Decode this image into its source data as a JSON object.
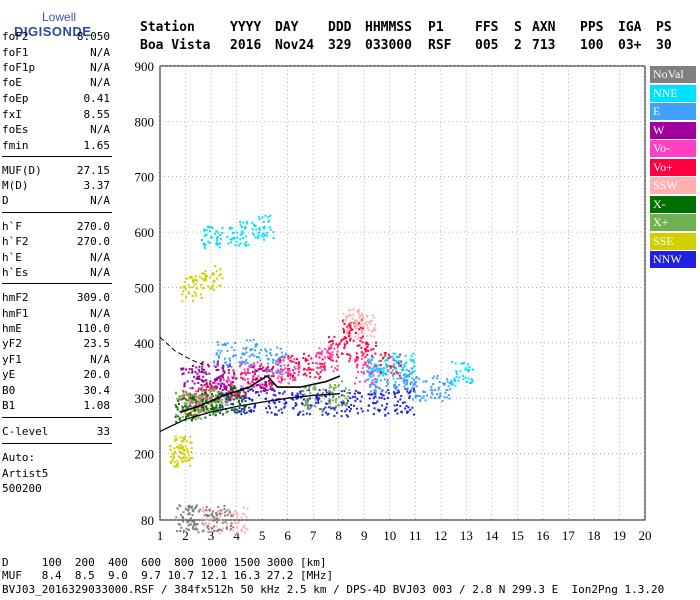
{
  "logo": {
    "brand_top": "Lowell",
    "brand_main": "DIGISONDE"
  },
  "header": {
    "row1": [
      "Station",
      "YYYY",
      "DAY",
      "DDD",
      "HHMMSS",
      "P1",
      "FFS",
      "S",
      "AXN",
      "PPS",
      "IGA",
      "PS"
    ],
    "row2": [
      "Boa Vista",
      "2016",
      "Nov24",
      "329",
      "033000",
      "RSF",
      "005",
      "2",
      "713",
      "100",
      "03+",
      "30"
    ]
  },
  "params": [
    {
      "label": "foF2",
      "value": "8.050"
    },
    {
      "label": "foF1",
      "value": "N/A"
    },
    {
      "label": "foF1p",
      "value": "N/A"
    },
    {
      "label": "foE",
      "value": "N/A"
    },
    {
      "label": "foEp",
      "value": "0.41"
    },
    {
      "label": "fxI",
      "value": "8.55"
    },
    {
      "label": "foEs",
      "value": "N/A"
    },
    {
      "label": "fmin",
      "value": "1.65"
    },
    {
      "label": "MUF(D)",
      "value": "27.15"
    },
    {
      "label": "M(D)",
      "value": "3.37"
    },
    {
      "label": "D",
      "value": "N/A"
    },
    {
      "label": "h`F",
      "value": "270.0"
    },
    {
      "label": "h`F2",
      "value": "270.0"
    },
    {
      "label": "h`E",
      "value": "N/A"
    },
    {
      "label": "h`Es",
      "value": "N/A"
    },
    {
      "label": "hmF2",
      "value": "309.0"
    },
    {
      "label": "hmF1",
      "value": "N/A"
    },
    {
      "label": "hmE",
      "value": "110.0"
    },
    {
      "label": "yF2",
      "value": "23.5"
    },
    {
      "label": "yF1",
      "value": "N/A"
    },
    {
      "label": "yE",
      "value": "20.0"
    },
    {
      "label": "B0",
      "value": "30.4"
    },
    {
      "label": "B1",
      "value": "1.08"
    },
    {
      "label": "C-level",
      "value": "33"
    },
    {
      "label": "Auto:",
      "value": ""
    },
    {
      "label": "Artist5",
      "value": ""
    },
    {
      "label": "500200",
      "value": ""
    }
  ],
  "legend": [
    {
      "label": "NoVal",
      "color": "#808080"
    },
    {
      "label": "NNE",
      "color": "#00e0ff"
    },
    {
      "label": "E",
      "color": "#40a0ff"
    },
    {
      "label": "W",
      "color": "#a000a0"
    },
    {
      "label": "Vo-",
      "color": "#ff40c0"
    },
    {
      "label": "Vo+",
      "color": "#ff0040"
    },
    {
      "label": "SSW",
      "color": "#ffb0b0"
    },
    {
      "label": "X-",
      "color": "#007000"
    },
    {
      "label": "X+",
      "color": "#70b050"
    },
    {
      "label": "SSE",
      "color": "#d0d000"
    },
    {
      "label": "NNW",
      "color": "#2020e0"
    }
  ],
  "bottom": {
    "line1": "D     100  200  400  600  800 1000 1500 3000 [km]",
    "line2": "MUF   8.4  8.5  9.0  9.7 10.7 12.1 16.3 27.2 [MHz]",
    "line3": "BVJ03_2016329033000.RSF / 384fx512h 50 kHz 2.5 km / DPS-4D BVJ03 003 / 2.8 N 299.3 E  Ion2Png 1.3.20"
  },
  "chart_data": {
    "type": "scatter",
    "title": "",
    "xlabel": "",
    "ylabel": "",
    "xlim": [
      1,
      20
    ],
    "ylim": [
      80,
      900
    ],
    "x_ticks": [
      1,
      2,
      3,
      4,
      5,
      6,
      7,
      8,
      9,
      10,
      11,
      12,
      13,
      14,
      15,
      16,
      17,
      18,
      19,
      20
    ],
    "y_ticks": [
      80,
      200,
      300,
      400,
      500,
      600,
      700,
      800,
      900
    ],
    "grid": true,
    "legend_position": "right",
    "series": [
      {
        "name": "NNW",
        "color": "#2020e0",
        "points": [
          [
            3.6,
            298
          ],
          [
            4.5,
            296
          ],
          [
            5.5,
            295
          ],
          [
            6.5,
            294
          ],
          [
            7.5,
            293
          ],
          [
            8.5,
            292
          ],
          [
            9.5,
            293
          ],
          [
            10.5,
            295
          ]
        ]
      },
      {
        "name": "Vo+",
        "color": "#ff0040",
        "points": [
          [
            2.2,
            292
          ],
          [
            3,
            305
          ],
          [
            4,
            325
          ],
          [
            5,
            340
          ],
          [
            6,
            355
          ],
          [
            7,
            360
          ],
          [
            8,
            390
          ],
          [
            8.5,
            420
          ],
          [
            9,
            380
          ],
          [
            10,
            360
          ]
        ]
      },
      {
        "name": "Vo-",
        "color": "#ff40c0",
        "points": [
          [
            2.5,
            300
          ],
          [
            3.5,
            320
          ],
          [
            4.5,
            345
          ],
          [
            6,
            350
          ],
          [
            7.5,
            370
          ],
          [
            9,
            350
          ]
        ]
      },
      {
        "name": "E",
        "color": "#40a0ff",
        "points": [
          [
            3.5,
            380
          ],
          [
            4.5,
            385
          ],
          [
            5.5,
            370
          ],
          [
            9.5,
            335
          ],
          [
            10.5,
            340
          ],
          [
            11,
            320
          ],
          [
            12,
            320
          ]
        ]
      },
      {
        "name": "NNE",
        "color": "#00e0ff",
        "points": [
          [
            3,
            590
          ],
          [
            4,
            600
          ],
          [
            5,
            610
          ],
          [
            9.5,
            355
          ],
          [
            10.5,
            360
          ],
          [
            12.8,
            345
          ]
        ]
      },
      {
        "name": "W",
        "color": "#a000a0",
        "points": [
          [
            2.2,
            340
          ],
          [
            3,
            345
          ],
          [
            3.5,
            340
          ],
          [
            5,
            335
          ]
        ]
      },
      {
        "name": "X+",
        "color": "#70b050",
        "points": [
          [
            2,
            290
          ],
          [
            2.2,
            285
          ],
          [
            2.8,
            300
          ],
          [
            3.2,
            295
          ],
          [
            7,
            300
          ],
          [
            8,
            310
          ]
        ]
      },
      {
        "name": "X-",
        "color": "#007000",
        "points": [
          [
            2,
            282
          ],
          [
            3,
            290
          ],
          [
            4,
            300
          ]
        ]
      },
      {
        "name": "SSE",
        "color": "#d0d000",
        "points": [
          [
            1.8,
            210
          ],
          [
            1.8,
            195
          ],
          [
            2.2,
            500
          ],
          [
            3,
            520
          ]
        ]
      },
      {
        "name": "SSW",
        "color": "#ffb0b0",
        "points": [
          [
            3,
            80
          ],
          [
            4,
            82
          ],
          [
            8.5,
            440
          ],
          [
            9,
            430
          ]
        ]
      },
      {
        "name": "NoVal",
        "color": "#808080",
        "points": [
          [
            2,
            85
          ],
          [
            2.5,
            83
          ],
          [
            3.4,
            84
          ]
        ]
      }
    ],
    "profile_curve": [
      [
        1,
        240
      ],
      [
        2,
        262
      ],
      [
        3,
        275
      ],
      [
        4,
        285
      ],
      [
        5,
        293
      ],
      [
        6,
        300
      ],
      [
        7,
        305
      ],
      [
        8,
        308
      ],
      [
        8.05,
        309
      ]
    ],
    "trace_curve": [
      [
        1.8,
        275
      ],
      [
        2.5,
        285
      ],
      [
        3.5,
        305
      ],
      [
        4.5,
        320
      ],
      [
        5.2,
        340
      ],
      [
        5.6,
        320
      ],
      [
        6.5,
        320
      ],
      [
        7.5,
        330
      ],
      [
        8.05,
        340
      ]
    ],
    "dashed_curve": [
      [
        1,
        410
      ],
      [
        1.6,
        385
      ],
      [
        2.2,
        370
      ],
      [
        2.7,
        360
      ]
    ]
  }
}
